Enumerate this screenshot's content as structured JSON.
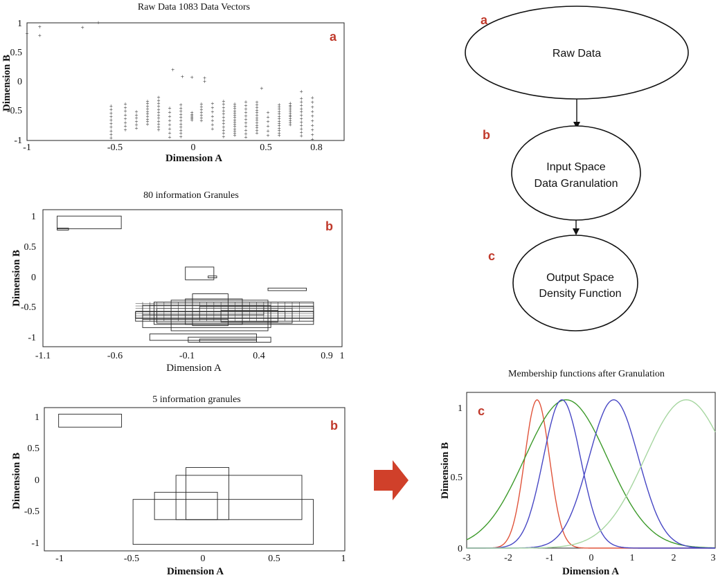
{
  "colors": {
    "accent": "#c0392b",
    "arrow": "#d0402a",
    "axis": "#222222",
    "series": [
      "#e0533a",
      "#3c9a2a",
      "#3f3fbf",
      "#4a4ac8",
      "#a6d6a0"
    ]
  },
  "panels": {
    "raw": {
      "title": "Raw Data 1083 Data Vectors",
      "letter": "a",
      "xlabel": "Dimension A",
      "ylabel": "Dimension B",
      "xticks": [
        "-1",
        "-0.5",
        "0",
        "0.5",
        "0.8"
      ],
      "yticks": [
        "1",
        "0.5",
        "0",
        "-0.5",
        "-1"
      ]
    },
    "gran80": {
      "title": "80 information Granules",
      "letter": "b",
      "xlabel": "Dimension A",
      "ylabel": "Dimension B",
      "xticks": [
        "-1.1",
        "-0.6",
        "-0.1",
        "0.4",
        "0.9",
        "1"
      ],
      "yticks": [
        "1",
        "0.5",
        "0",
        "-0.5",
        "-1"
      ]
    },
    "gran5": {
      "title": "5 information granules",
      "letter": "b",
      "xlabel": "Dimension A",
      "ylabel": "Dimension B",
      "xticks": [
        "-1",
        "-0.5",
        "0",
        "0.5",
        "1"
      ],
      "yticks": [
        "1",
        "0.5",
        "0",
        "-0.5",
        "-1"
      ]
    },
    "flow": {
      "letters": [
        "a",
        "b",
        "c"
      ],
      "nodes": [
        {
          "lines": [
            "Raw Data"
          ]
        },
        {
          "lines": [
            "Input Space",
            "Data Granulation"
          ]
        },
        {
          "lines": [
            "Output Space",
            "Density Function"
          ]
        }
      ]
    },
    "membership": {
      "title": "Membership functions after Granulation",
      "letter": "c",
      "xlabel": "Dimension A",
      "ylabel": "Dimension B",
      "xticks": [
        "-3",
        "-2",
        "-1",
        "0",
        "1",
        "2",
        "3"
      ],
      "yticks": [
        "1",
        "0.5",
        "0"
      ]
    }
  },
  "chart_data": [
    {
      "type": "scatter",
      "title": "Raw Data 1083 Data Vectors",
      "xlabel": "Dimension A",
      "ylabel": "Dimension B",
      "xlim": [
        -1,
        1
      ],
      "ylim": [
        -1,
        1
      ],
      "points": [
        [
          -1.0,
          0.82
        ],
        [
          -0.92,
          0.93
        ],
        [
          -0.92,
          0.78
        ],
        [
          -0.65,
          0.92
        ],
        [
          -0.55,
          1.0
        ],
        [
          -0.08,
          0.2
        ],
        [
          0.04,
          0.07
        ],
        [
          -0.02,
          0.08
        ],
        [
          0.12,
          0.0
        ],
        [
          0.48,
          -0.12
        ],
        [
          0.73,
          -0.17
        ],
        [
          0.12,
          0.06
        ]
      ],
      "columns_x": [
        -0.47,
        -0.38,
        -0.31,
        -0.24,
        -0.17,
        -0.1,
        -0.03,
        0.04,
        0.1,
        0.17,
        0.24,
        0.31,
        0.38,
        0.45,
        0.52,
        0.59,
        0.66,
        0.73,
        0.8
      ],
      "column_yrange": [
        -1.0,
        -0.25
      ]
    },
    {
      "type": "table",
      "title": "80 information Granules",
      "xlabel": "Dimension A",
      "ylabel": "Dimension B",
      "xlim": [
        -1.1,
        1.0
      ],
      "ylim": [
        -1.05,
        1.1
      ],
      "rects": [
        [
          -1.0,
          0.8,
          -0.55,
          1.0
        ],
        [
          -1.0,
          0.78,
          -0.92,
          0.81
        ],
        [
          -0.1,
          0.0,
          0.1,
          0.2
        ],
        [
          0.06,
          0.03,
          0.12,
          0.06
        ],
        [
          0.48,
          -0.17,
          0.75,
          -0.13
        ],
        [
          -0.35,
          -0.95,
          0.4,
          -0.85
        ],
        [
          -0.08,
          -0.98,
          0.5,
          -0.9
        ],
        [
          0.0,
          -0.98,
          0.4,
          -0.93
        ],
        [
          -0.32,
          -0.7,
          0.8,
          -0.35
        ],
        [
          -0.45,
          -0.65,
          0.8,
          -0.5
        ],
        [
          -0.45,
          -0.6,
          0.6,
          -0.5
        ],
        [
          -0.4,
          -0.75,
          0.5,
          -0.4
        ],
        [
          -0.2,
          -0.8,
          0.48,
          -0.32
        ],
        [
          -0.3,
          -0.68,
          0.65,
          -0.45
        ],
        [
          -0.1,
          -0.7,
          0.3,
          -0.3
        ],
        [
          0.0,
          -0.6,
          0.8,
          -0.42
        ],
        [
          -0.35,
          -0.55,
          0.45,
          -0.4
        ],
        [
          -0.05,
          -0.72,
          0.2,
          -0.22
        ],
        [
          0.15,
          -0.66,
          0.55,
          -0.48
        ],
        [
          -0.4,
          -0.62,
          0.2,
          -0.55
        ]
      ]
    },
    {
      "type": "table",
      "title": "5 information granules",
      "xlabel": "Dimension A",
      "ylabel": "Dimension B",
      "xlim": [
        -1.1,
        1.0
      ],
      "ylim": [
        -1.1,
        1.1
      ],
      "rects": [
        [
          -1.0,
          0.8,
          -0.56,
          1.0
        ],
        [
          -0.48,
          -1.0,
          0.78,
          -0.31
        ],
        [
          -0.33,
          -0.62,
          0.11,
          -0.2
        ],
        [
          -0.18,
          -0.62,
          0.7,
          0.06
        ],
        [
          -0.11,
          -0.62,
          0.19,
          0.18
        ]
      ]
    },
    {
      "type": "line",
      "title": "Membership functions after Granulation",
      "xlabel": "Dimension A",
      "ylabel": "Dimension B",
      "xlim": [
        -3,
        3
      ],
      "ylim": [
        0,
        1.05
      ],
      "series": [
        {
          "center": -1.3,
          "sigma": 0.3,
          "color": "#e0533a"
        },
        {
          "center": -0.6,
          "sigma": 1.0,
          "color": "#3c9a2a"
        },
        {
          "center": -0.7,
          "sigma": 0.45,
          "color": "#4646c4"
        },
        {
          "center": 0.55,
          "sigma": 0.6,
          "color": "#4646c4"
        },
        {
          "center": 2.3,
          "sigma": 1.0,
          "color": "#a6d6a0"
        }
      ]
    }
  ]
}
